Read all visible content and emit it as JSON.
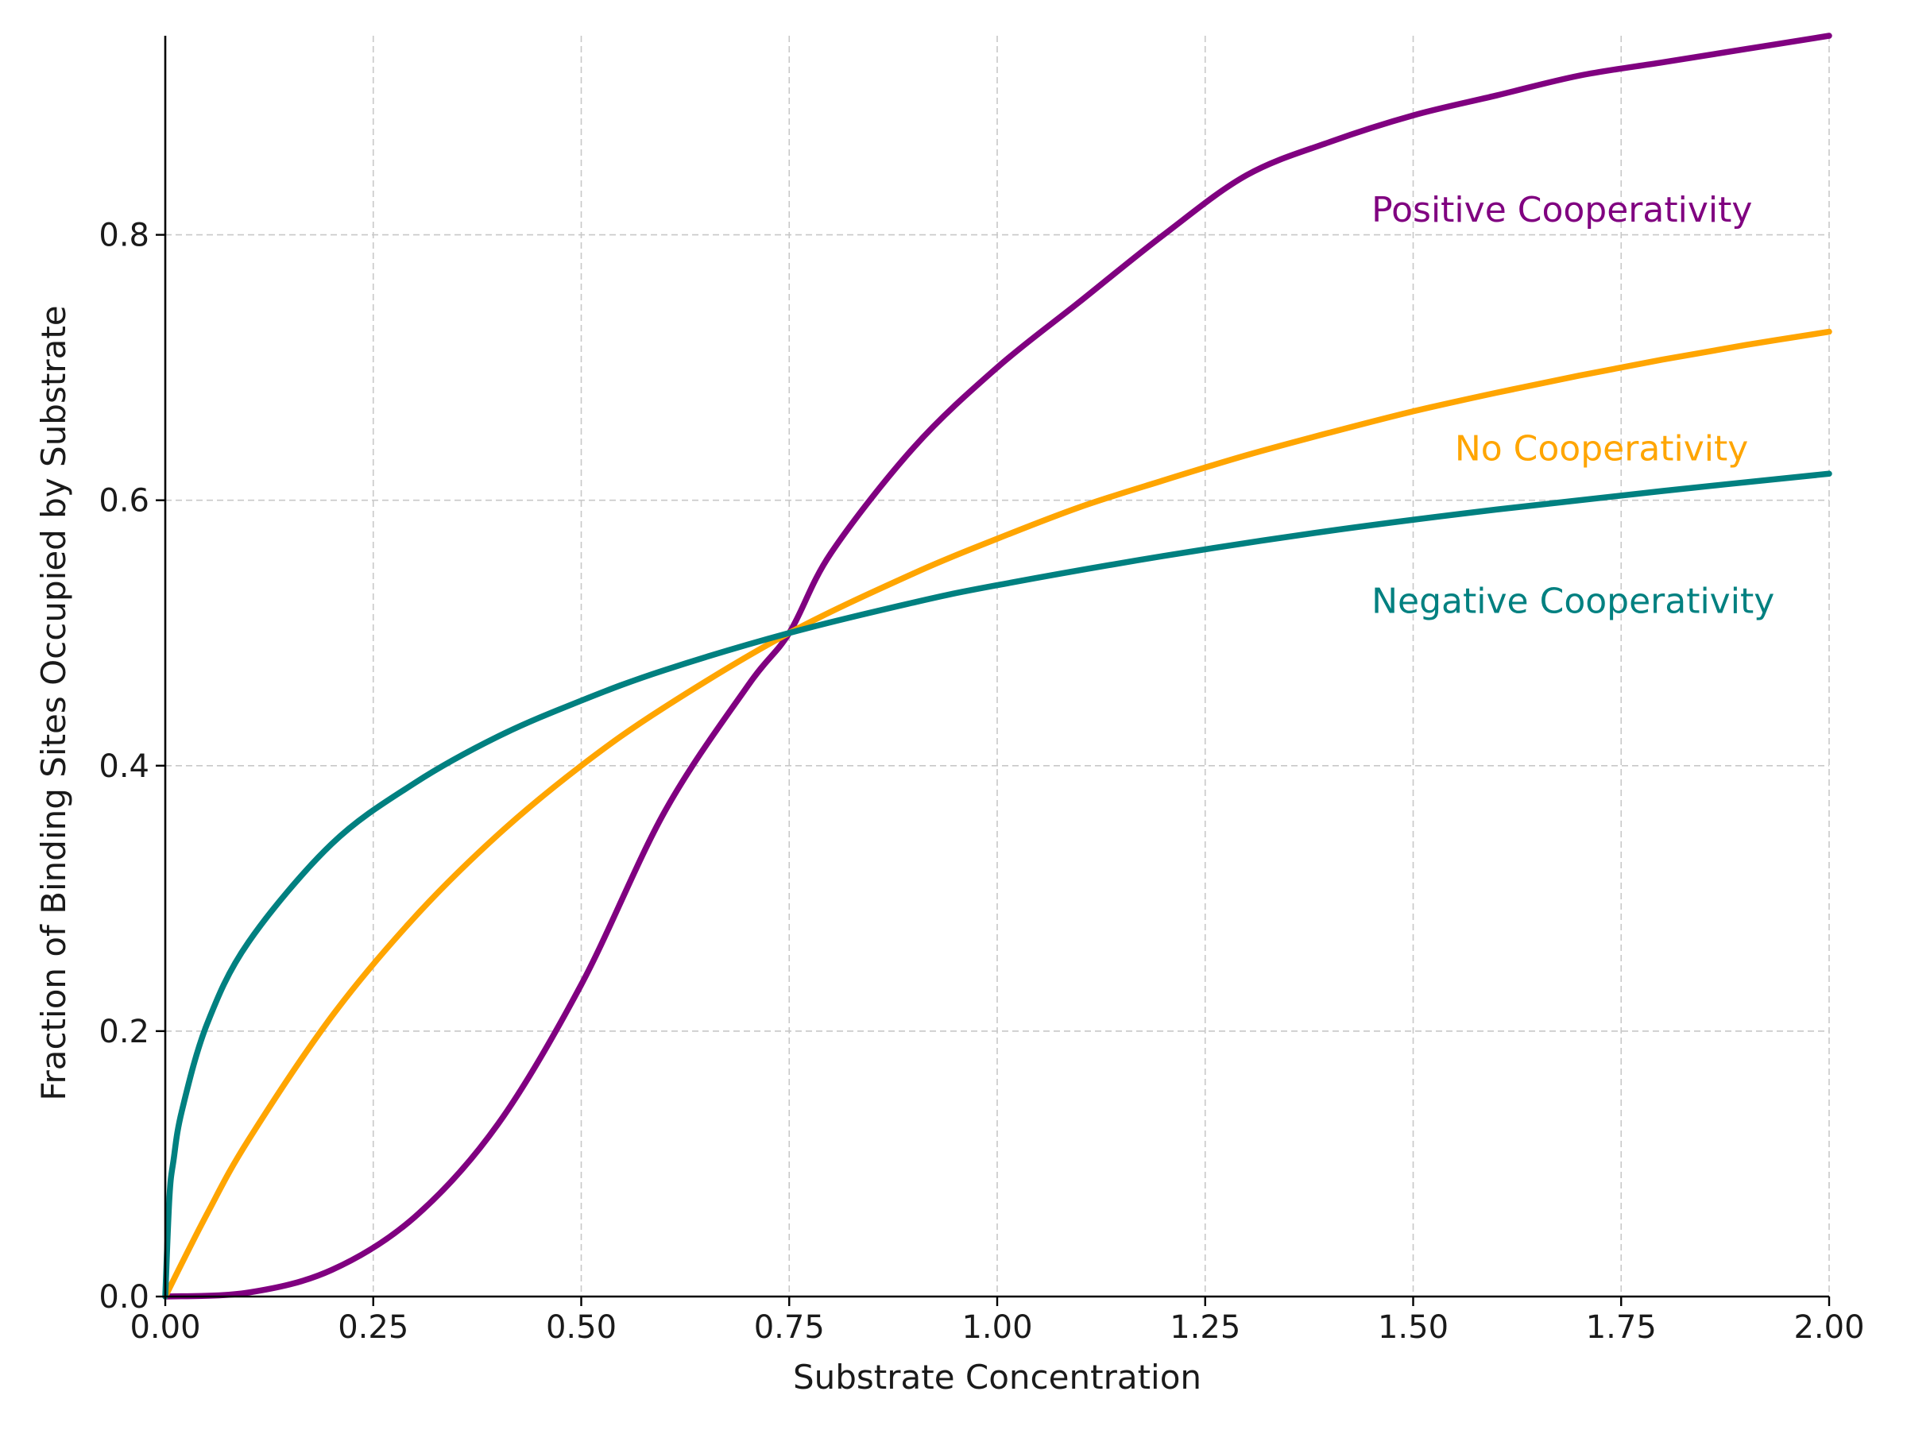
{
  "chart_data": {
    "type": "line",
    "title": "",
    "xlabel": "Substrate Concentration",
    "ylabel": "Fraction of Binding Sites Occupied by Substrate",
    "xlim": [
      0,
      2
    ],
    "ylim": [
      0,
      0.95
    ],
    "xticks": [
      0,
      0.25,
      0.5,
      0.75,
      1.0,
      1.25,
      1.5,
      1.75,
      2.0
    ],
    "xtick_labels": [
      "0.00",
      "0.25",
      "0.50",
      "0.75",
      "1.00",
      "1.25",
      "1.50",
      "1.75",
      "2.00"
    ],
    "yticks": [
      0,
      0.2,
      0.4,
      0.6,
      0.8
    ],
    "ytick_labels": [
      "0.0",
      "0.2",
      "0.4",
      "0.6",
      "0.8"
    ],
    "grid": true,
    "legend": "inline labels near right end of each curve",
    "series": [
      {
        "name": "Positive Cooperativity",
        "color": "#800080",
        "x": [
          0,
          0.1,
          0.2,
          0.3,
          0.4,
          0.5,
          0.6,
          0.7,
          0.75,
          0.8,
          0.9,
          1.0,
          1.1,
          1.2,
          1.3,
          1.4,
          1.5,
          1.6,
          1.7,
          1.8,
          1.9,
          2.0
        ],
        "y": [
          0,
          0.003,
          0.02,
          0.06,
          0.13,
          0.235,
          0.365,
          0.46,
          0.5,
          0.56,
          0.64,
          0.7,
          0.75,
          0.8,
          0.845,
          0.87,
          0.89,
          0.905,
          0.92,
          0.93,
          0.94,
          0.95
        ],
        "label_position": [
          1.45,
          0.81
        ]
      },
      {
        "name": "No Cooperativity",
        "color": "#FFA500",
        "x": [
          0,
          0.05,
          0.1,
          0.2,
          0.3,
          0.4,
          0.5,
          0.6,
          0.75,
          0.9,
          1.0,
          1.1,
          1.2,
          1.3,
          1.4,
          1.5,
          1.6,
          1.7,
          1.8,
          1.9,
          2.0
        ],
        "y": [
          0,
          0.062,
          0.118,
          0.211,
          0.286,
          0.348,
          0.4,
          0.444,
          0.5,
          0.545,
          0.571,
          0.595,
          0.615,
          0.634,
          0.651,
          0.667,
          0.681,
          0.694,
          0.706,
          0.717,
          0.727
        ],
        "label_position": [
          1.55,
          0.63
        ]
      },
      {
        "name": "Negative Cooperativity",
        "color": "#008080",
        "x": [
          0,
          0.005,
          0.01,
          0.02,
          0.05,
          0.1,
          0.2,
          0.3,
          0.4,
          0.5,
          0.6,
          0.75,
          0.9,
          1.0,
          1.2,
          1.4,
          1.6,
          1.8,
          2.0
        ],
        "y": [
          0,
          0.075,
          0.103,
          0.14,
          0.205,
          0.267,
          0.341,
          0.387,
          0.422,
          0.449,
          0.472,
          0.5,
          0.523,
          0.536,
          0.558,
          0.577,
          0.593,
          0.607,
          0.62
        ],
        "label_position": [
          1.45,
          0.515
        ]
      }
    ]
  }
}
